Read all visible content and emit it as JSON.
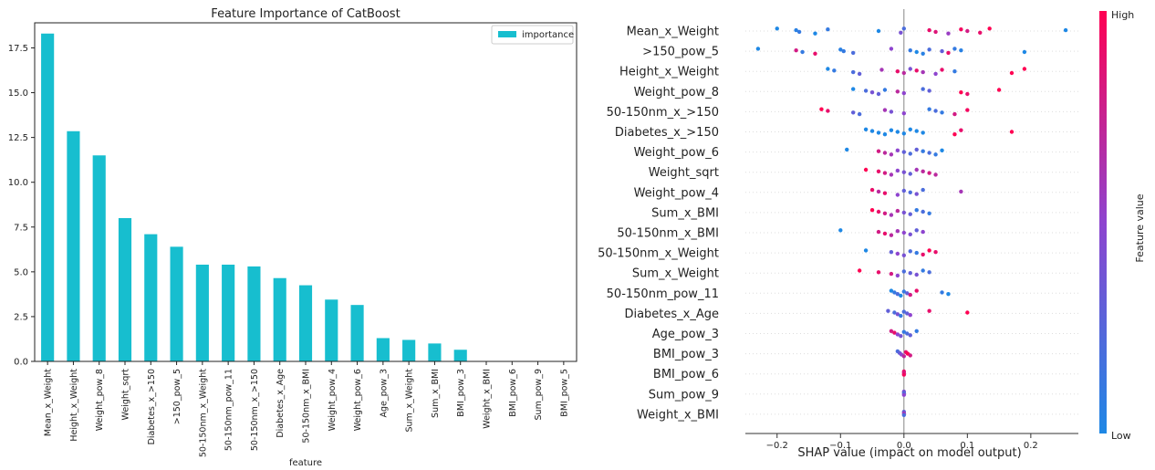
{
  "chart_data": [
    {
      "type": "bar",
      "title": "Feature Importance of CatBoost",
      "xlabel": "feature",
      "ylabel": "",
      "legend": {
        "entries": [
          "importance"
        ],
        "placement": "top-right"
      },
      "ylim": [
        0,
        18.9
      ],
      "yticks": [
        "0.0",
        "2.5",
        "5.0",
        "7.5",
        "10.0",
        "12.5",
        "15.0",
        "17.5"
      ],
      "categories": [
        "Mean_x_Weight",
        "Height_x_Weight",
        "Weight_pow_8",
        "Weight_sqrt",
        "Diabetes_x_>150",
        ">150_pow_5",
        "50-150nm_x_Weight",
        "50-150nm_pow_11",
        "50-150nm_x_>150",
        "Diabetes_x_Age",
        "50-150nm_x_BMI",
        "Weight_pow_4",
        "Weight_pow_6",
        "Age_pow_3",
        "Sum_x_Weight",
        "Sum_x_BMI",
        "BMI_pow_3",
        "Weight_x_BMI",
        "BMI_pow_6",
        "Sum_pow_9",
        "BMI_pow_5"
      ],
      "series": [
        {
          "name": "importance",
          "values": [
            18.3,
            12.85,
            11.5,
            8.0,
            7.1,
            6.4,
            5.4,
            5.4,
            5.3,
            4.65,
            4.25,
            3.45,
            3.15,
            1.3,
            1.2,
            1.0,
            0.65,
            0,
            0,
            0,
            0
          ]
        }
      ],
      "colors": {
        "bar": "#17BECF"
      },
      "grid": false
    },
    {
      "type": "scatter",
      "subtype": "shap-beeswarm",
      "xlabel": "SHAP value (impact on model output)",
      "xlim": [
        -0.25,
        0.275
      ],
      "xticks": [
        "−0.2",
        "−0.1",
        "0.0",
        "0.1",
        "0.2"
      ],
      "colorbar": {
        "label": "Feature value",
        "high": "High",
        "low": "Low",
        "colors": [
          "#1E88E5",
          "#8E44CF",
          "#FF0052"
        ]
      },
      "features": [
        "Mean_x_Weight",
        ">150_pow_5",
        "Height_x_Weight",
        "Weight_pow_8",
        "50-150nm_x_>150",
        "Diabetes_x_>150",
        "Weight_pow_6",
        "Weight_sqrt",
        "Weight_pow_4",
        "Sum_x_BMI",
        "50-150nm_x_BMI",
        "50-150nm_x_Weight",
        "Sum_x_Weight",
        "50-150nm_pow_11",
        "Diabetes_x_Age",
        "Age_pow_3",
        "BMI_pow_3",
        "BMI_pow_6",
        "Sum_pow_9",
        "Weight_x_BMI"
      ],
      "points": [
        [
          [
            -0.2,
            0.0
          ],
          [
            -0.17,
            0.05
          ],
          [
            -0.165,
            0.1
          ],
          [
            -0.14,
            0.0
          ],
          [
            -0.12,
            0.1
          ],
          [
            -0.04,
            0.0
          ],
          [
            -0.005,
            0.4
          ],
          [
            0.0,
            0.2
          ],
          [
            0.04,
            0.9
          ],
          [
            0.05,
            0.85
          ],
          [
            0.07,
            0.55
          ],
          [
            0.09,
            0.95
          ],
          [
            0.1,
            0.8
          ],
          [
            0.12,
            0.9
          ],
          [
            0.135,
            1.0
          ],
          [
            0.255,
            0.0
          ]
        ],
        [
          [
            -0.23,
            0.0
          ],
          [
            -0.17,
            0.8
          ],
          [
            -0.16,
            0.1
          ],
          [
            -0.14,
            0.9
          ],
          [
            -0.1,
            0.05
          ],
          [
            -0.095,
            0.1
          ],
          [
            -0.08,
            0.2
          ],
          [
            -0.02,
            0.5
          ],
          [
            0.01,
            0.1
          ],
          [
            0.02,
            0.0
          ],
          [
            0.03,
            0.05
          ],
          [
            0.04,
            0.2
          ],
          [
            0.06,
            0.3
          ],
          [
            0.07,
            0.9
          ],
          [
            0.08,
            0.1
          ],
          [
            0.09,
            0.05
          ],
          [
            0.19,
            0.0
          ]
        ],
        [
          [
            -0.12,
            0.0
          ],
          [
            -0.11,
            0.1
          ],
          [
            -0.08,
            0.2
          ],
          [
            -0.07,
            0.3
          ],
          [
            -0.035,
            0.6
          ],
          [
            -0.01,
            0.9
          ],
          [
            0.0,
            0.7
          ],
          [
            0.01,
            0.4
          ],
          [
            0.02,
            0.9
          ],
          [
            0.03,
            0.6
          ],
          [
            0.05,
            0.5
          ],
          [
            0.06,
            0.9
          ],
          [
            0.08,
            0.1
          ],
          [
            0.17,
            1.0
          ],
          [
            0.19,
            1.0
          ]
        ],
        [
          [
            -0.08,
            0.0
          ],
          [
            -0.06,
            0.2
          ],
          [
            -0.05,
            0.4
          ],
          [
            -0.04,
            0.3
          ],
          [
            -0.03,
            0.1
          ],
          [
            -0.01,
            0.7
          ],
          [
            0.0,
            0.5
          ],
          [
            0.03,
            0.2
          ],
          [
            0.04,
            0.3
          ],
          [
            0.09,
            1.0
          ],
          [
            0.1,
            0.9
          ],
          [
            0.15,
            1.0
          ]
        ],
        [
          [
            -0.13,
            1.0
          ],
          [
            -0.12,
            0.9
          ],
          [
            -0.08,
            0.3
          ],
          [
            -0.07,
            0.2
          ],
          [
            -0.03,
            0.6
          ],
          [
            -0.02,
            0.4
          ],
          [
            0.0,
            0.5
          ],
          [
            0.04,
            0.1
          ],
          [
            0.05,
            0.2
          ],
          [
            0.06,
            0.1
          ],
          [
            0.08,
            0.8
          ],
          [
            0.1,
            0.95
          ]
        ],
        [
          [
            -0.06,
            0.0
          ],
          [
            -0.05,
            0.0
          ],
          [
            -0.04,
            0.0
          ],
          [
            -0.03,
            0.0
          ],
          [
            -0.02,
            0.0
          ],
          [
            -0.01,
            0.0
          ],
          [
            0.0,
            0.0
          ],
          [
            0.01,
            0.0
          ],
          [
            0.02,
            0.0
          ],
          [
            0.03,
            0.0
          ],
          [
            0.08,
            1.0
          ],
          [
            0.09,
            0.9
          ],
          [
            0.17,
            1.0
          ]
        ],
        [
          [
            -0.09,
            0.0
          ],
          [
            -0.04,
            0.8
          ],
          [
            -0.03,
            0.7
          ],
          [
            -0.02,
            0.6
          ],
          [
            -0.01,
            0.5
          ],
          [
            0.0,
            0.3
          ],
          [
            0.01,
            0.2
          ],
          [
            0.02,
            0.3
          ],
          [
            0.03,
            0.1
          ],
          [
            0.04,
            0.2
          ],
          [
            0.05,
            0.1
          ],
          [
            0.06,
            0.0
          ]
        ],
        [
          [
            -0.06,
            1.0
          ],
          [
            -0.04,
            0.9
          ],
          [
            -0.03,
            0.8
          ],
          [
            -0.02,
            0.6
          ],
          [
            -0.01,
            0.5
          ],
          [
            0.0,
            0.4
          ],
          [
            0.01,
            0.3
          ],
          [
            0.02,
            0.6
          ],
          [
            0.03,
            0.7
          ],
          [
            0.04,
            0.8
          ],
          [
            0.05,
            0.7
          ]
        ],
        [
          [
            -0.05,
            0.9
          ],
          [
            -0.04,
            0.7
          ],
          [
            -0.03,
            0.9
          ],
          [
            -0.01,
            0.5
          ],
          [
            0.0,
            0.3
          ],
          [
            0.01,
            0.2
          ],
          [
            0.02,
            0.4
          ],
          [
            0.03,
            0.2
          ],
          [
            0.09,
            0.6
          ]
        ],
        [
          [
            -0.05,
            1.0
          ],
          [
            -0.04,
            0.9
          ],
          [
            -0.03,
            0.8
          ],
          [
            -0.02,
            0.6
          ],
          [
            -0.01,
            0.7
          ],
          [
            0.0,
            0.4
          ],
          [
            0.01,
            0.3
          ],
          [
            0.02,
            0.1
          ],
          [
            0.03,
            0.2
          ],
          [
            0.04,
            0.1
          ]
        ],
        [
          [
            -0.1,
            0.0
          ],
          [
            -0.04,
            0.8
          ],
          [
            -0.03,
            0.9
          ],
          [
            -0.02,
            0.7
          ],
          [
            -0.01,
            0.6
          ],
          [
            0.0,
            0.5
          ],
          [
            0.01,
            0.4
          ],
          [
            0.02,
            0.3
          ],
          [
            0.03,
            0.5
          ]
        ],
        [
          [
            -0.06,
            0.0
          ],
          [
            -0.02,
            0.3
          ],
          [
            -0.01,
            0.5
          ],
          [
            0.0,
            0.4
          ],
          [
            0.01,
            0.2
          ],
          [
            0.02,
            0.1
          ],
          [
            0.03,
            0.9
          ],
          [
            0.04,
            1.0
          ],
          [
            0.05,
            0.9
          ]
        ],
        [
          [
            -0.07,
            1.0
          ],
          [
            -0.04,
            0.9
          ],
          [
            -0.02,
            0.8
          ],
          [
            -0.01,
            0.5
          ],
          [
            0.0,
            0.2
          ],
          [
            0.01,
            0.3
          ],
          [
            0.02,
            0.4
          ],
          [
            0.03,
            0.1
          ],
          [
            0.04,
            0.2
          ]
        ],
        [
          [
            -0.02,
            0.0
          ],
          [
            -0.015,
            0.1
          ],
          [
            -0.01,
            0.2
          ],
          [
            -0.005,
            0.0
          ],
          [
            0.0,
            0.1
          ],
          [
            0.005,
            0.3
          ],
          [
            0.01,
            0.8
          ],
          [
            0.02,
            0.9
          ],
          [
            0.06,
            0.1
          ],
          [
            0.07,
            0.0
          ]
        ],
        [
          [
            -0.025,
            0.3
          ],
          [
            -0.015,
            0.2
          ],
          [
            -0.01,
            0.4
          ],
          [
            -0.005,
            0.1
          ],
          [
            0.0,
            0.2
          ],
          [
            0.005,
            0.3
          ],
          [
            0.01,
            0.5
          ],
          [
            0.04,
            0.9
          ],
          [
            0.1,
            1.0
          ]
        ],
        [
          [
            -0.02,
            0.8
          ],
          [
            -0.015,
            0.9
          ],
          [
            -0.01,
            0.5
          ],
          [
            -0.005,
            0.4
          ],
          [
            0.0,
            0.1
          ],
          [
            0.005,
            0.2
          ],
          [
            0.01,
            0.3
          ],
          [
            0.02,
            0.1
          ]
        ],
        [
          [
            -0.01,
            0.2
          ],
          [
            -0.007,
            0.3
          ],
          [
            -0.004,
            0.5
          ],
          [
            0.0,
            0.7
          ],
          [
            0.003,
            0.9
          ],
          [
            0.006,
            1.0
          ],
          [
            0.01,
            0.8
          ]
        ],
        [
          [
            0.0,
            0.9
          ],
          [
            0.0,
            0.8
          ],
          [
            0.0,
            0.95
          ]
        ],
        [
          [
            0.0,
            0.4
          ],
          [
            0.0,
            0.2
          ],
          [
            0.0,
            0.5
          ]
        ],
        [
          [
            0.0,
            0.3
          ],
          [
            0.0,
            0.6
          ],
          [
            0.0,
            0.2
          ]
        ]
      ]
    }
  ]
}
